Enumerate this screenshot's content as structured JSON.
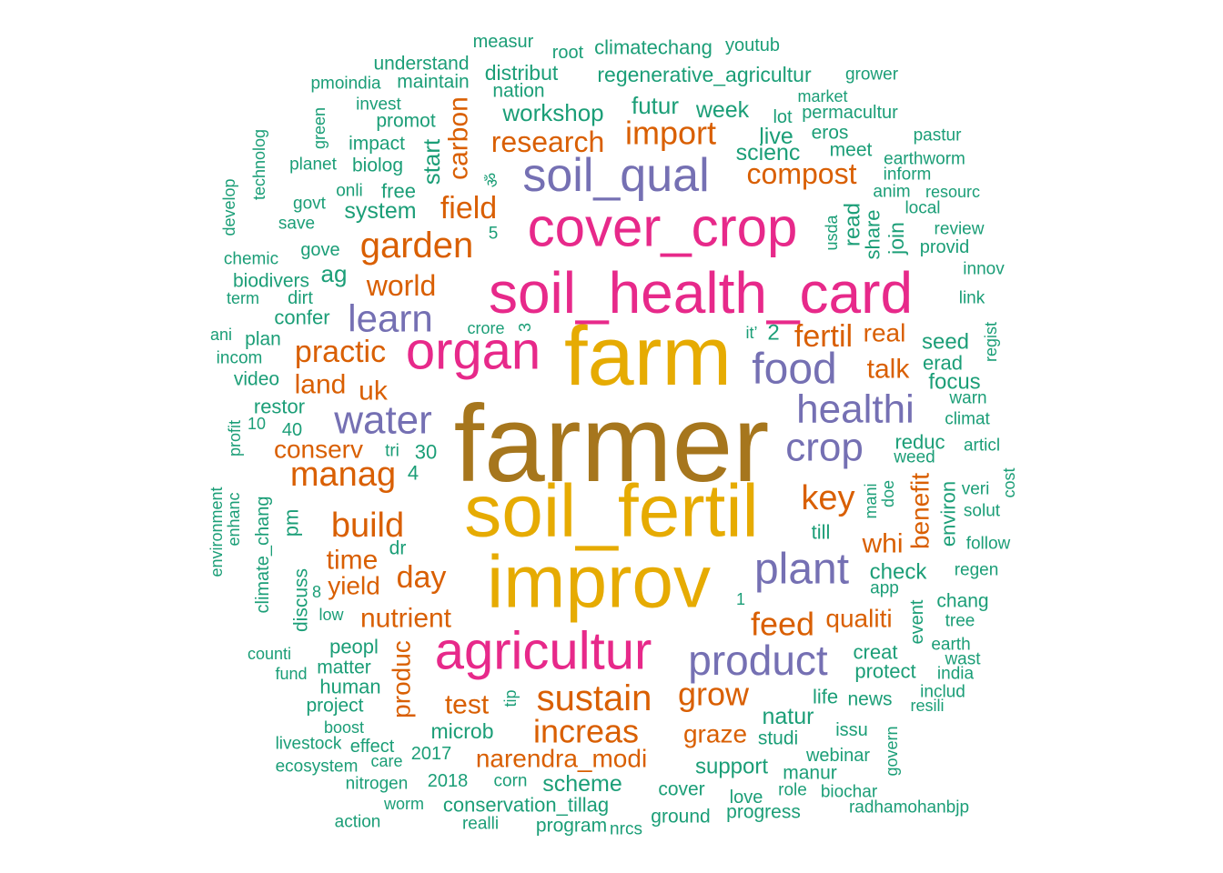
{
  "palette": {
    "top": "#a6761d",
    "high": "#e6ab02",
    "pink": "#e7298a",
    "purple": "#7570b3",
    "orange": "#d95f02",
    "green": "#1b9e77"
  },
  "words": [
    {
      "text": "farmer",
      "color": "#a6761d"
    },
    {
      "text": "farm",
      "color": "#e6ab02"
    },
    {
      "text": "soil_fertil",
      "color": "#e6ab02"
    },
    {
      "text": "improv",
      "color": "#e6ab02"
    },
    {
      "text": "soil_health_card",
      "color": "#e7298a"
    },
    {
      "text": "cover_crop",
      "color": "#e7298a"
    },
    {
      "text": "organ",
      "color": "#e7298a"
    },
    {
      "text": "agricultur",
      "color": "#e7298a"
    },
    {
      "text": "soil_qual",
      "color": "#7570b3"
    },
    {
      "text": "food",
      "color": "#7570b3"
    },
    {
      "text": "healthi",
      "color": "#7570b3"
    },
    {
      "text": "crop",
      "color": "#7570b3"
    },
    {
      "text": "water",
      "color": "#7570b3"
    },
    {
      "text": "learn",
      "color": "#7570b3"
    },
    {
      "text": "plant",
      "color": "#7570b3"
    },
    {
      "text": "product",
      "color": "#7570b3"
    },
    {
      "text": "garden",
      "color": "#d95f02"
    },
    {
      "text": "import",
      "color": "#d95f02"
    },
    {
      "text": "research",
      "color": "#d95f02"
    },
    {
      "text": "compost",
      "color": "#d95f02"
    },
    {
      "text": "field",
      "color": "#d95f02"
    },
    {
      "text": "world",
      "color": "#d95f02"
    },
    {
      "text": "practic",
      "color": "#d95f02"
    },
    {
      "text": "fertil",
      "color": "#d95f02"
    },
    {
      "text": "manag",
      "color": "#d95f02"
    },
    {
      "text": "build",
      "color": "#d95f02"
    },
    {
      "text": "key",
      "color": "#d95f02"
    },
    {
      "text": "sustain",
      "color": "#d95f02"
    },
    {
      "text": "increas",
      "color": "#d95f02"
    },
    {
      "text": "grow",
      "color": "#d95f02"
    },
    {
      "text": "feed",
      "color": "#d95f02"
    },
    {
      "text": "carbon",
      "color": "#d95f02"
    },
    {
      "text": "land",
      "color": "#d95f02"
    },
    {
      "text": "uk",
      "color": "#d95f02"
    },
    {
      "text": "talk",
      "color": "#d95f02"
    },
    {
      "text": "real",
      "color": "#d95f02"
    },
    {
      "text": "conserv",
      "color": "#d95f02"
    },
    {
      "text": "time",
      "color": "#d95f02"
    },
    {
      "text": "day",
      "color": "#d95f02"
    },
    {
      "text": "yield",
      "color": "#d95f02"
    },
    {
      "text": "nutrient",
      "color": "#d95f02"
    },
    {
      "text": "whi",
      "color": "#d95f02"
    },
    {
      "text": "benefit",
      "color": "#d95f02"
    },
    {
      "text": "qualiti",
      "color": "#d95f02"
    },
    {
      "text": "test",
      "color": "#d95f02"
    },
    {
      "text": "produc",
      "color": "#d95f02"
    },
    {
      "text": "graze",
      "color": "#d95f02"
    },
    {
      "text": "narendra_modi",
      "color": "#d95f02"
    },
    {
      "text": "measur",
      "color": "#1b9e77"
    },
    {
      "text": "root",
      "color": "#1b9e77"
    },
    {
      "text": "climatechang",
      "color": "#1b9e77"
    },
    {
      "text": "youtub",
      "color": "#1b9e77"
    },
    {
      "text": "understand",
      "color": "#1b9e77"
    },
    {
      "text": "distribut",
      "color": "#1b9e77"
    },
    {
      "text": "regenerative_agricultur",
      "color": "#1b9e77"
    },
    {
      "text": "grower",
      "color": "#1b9e77"
    },
    {
      "text": "pmoindia",
      "color": "#1b9e77"
    },
    {
      "text": "maintain",
      "color": "#1b9e77"
    },
    {
      "text": "nation",
      "color": "#1b9e77"
    },
    {
      "text": "invest",
      "color": "#1b9e77"
    },
    {
      "text": "futur",
      "color": "#1b9e77"
    },
    {
      "text": "market",
      "color": "#1b9e77"
    },
    {
      "text": "workshop",
      "color": "#1b9e77"
    },
    {
      "text": "week",
      "color": "#1b9e77"
    },
    {
      "text": "lot",
      "color": "#1b9e77"
    },
    {
      "text": "permacultur",
      "color": "#1b9e77"
    },
    {
      "text": "green",
      "color": "#1b9e77"
    },
    {
      "text": "promot",
      "color": "#1b9e77"
    },
    {
      "text": "live",
      "color": "#1b9e77"
    },
    {
      "text": "eros",
      "color": "#1b9e77"
    },
    {
      "text": "pastur",
      "color": "#1b9e77"
    },
    {
      "text": "technolog",
      "color": "#1b9e77"
    },
    {
      "text": "impact",
      "color": "#1b9e77"
    },
    {
      "text": "start",
      "color": "#1b9e77"
    },
    {
      "text": "scienc",
      "color": "#1b9e77"
    },
    {
      "text": "meet",
      "color": "#1b9e77"
    },
    {
      "text": "earthworm",
      "color": "#1b9e77"
    },
    {
      "text": "planet",
      "color": "#1b9e77"
    },
    {
      "text": "biolog",
      "color": "#1b9e77"
    },
    {
      "text": "inform",
      "color": "#1b9e77"
    },
    {
      "text": "develop",
      "color": "#1b9e77"
    },
    {
      "text": "onli",
      "color": "#1b9e77"
    },
    {
      "text": "free",
      "color": "#1b9e77"
    },
    {
      "text": "anim",
      "color": "#1b9e77"
    },
    {
      "text": "resourc",
      "color": "#1b9e77"
    },
    {
      "text": "govt",
      "color": "#1b9e77"
    },
    {
      "text": "system",
      "color": "#1b9e77"
    },
    {
      "text": "read",
      "color": "#1b9e77"
    },
    {
      "text": "usda",
      "color": "#1b9e77"
    },
    {
      "text": "local",
      "color": "#1b9e77"
    },
    {
      "text": "save",
      "color": "#1b9e77"
    },
    {
      "text": "share",
      "color": "#1b9e77"
    },
    {
      "text": "review",
      "color": "#1b9e77"
    },
    {
      "text": "join",
      "color": "#1b9e77"
    },
    {
      "text": "gove",
      "color": "#1b9e77"
    },
    {
      "text": "5",
      "color": "#1b9e77"
    },
    {
      "text": "provid",
      "color": "#1b9e77"
    },
    {
      "text": "chemic",
      "color": "#1b9e77"
    },
    {
      "text": "ag",
      "color": "#1b9e77"
    },
    {
      "text": "innov",
      "color": "#1b9e77"
    },
    {
      "text": "biodivers",
      "color": "#1b9e77"
    },
    {
      "text": "term",
      "color": "#1b9e77"
    },
    {
      "text": "dirt",
      "color": "#1b9e77"
    },
    {
      "text": "link",
      "color": "#1b9e77"
    },
    {
      "text": "confer",
      "color": "#1b9e77"
    },
    {
      "text": "crore",
      "color": "#1b9e77"
    },
    {
      "text": "3",
      "color": "#1b9e77"
    },
    {
      "text": "it’",
      "color": "#1b9e77"
    },
    {
      "text": "2",
      "color": "#1b9e77"
    },
    {
      "text": "ani",
      "color": "#1b9e77"
    },
    {
      "text": "plan",
      "color": "#1b9e77"
    },
    {
      "text": "seed",
      "color": "#1b9e77"
    },
    {
      "text": "regist",
      "color": "#1b9e77"
    },
    {
      "text": "incom",
      "color": "#1b9e77"
    },
    {
      "text": "erad",
      "color": "#1b9e77"
    },
    {
      "text": "video",
      "color": "#1b9e77"
    },
    {
      "text": "focus",
      "color": "#1b9e77"
    },
    {
      "text": "restor",
      "color": "#1b9e77"
    },
    {
      "text": "warn",
      "color": "#1b9e77"
    },
    {
      "text": "10",
      "color": "#1b9e77"
    },
    {
      "text": "40",
      "color": "#1b9e77"
    },
    {
      "text": "climat",
      "color": "#1b9e77"
    },
    {
      "text": "profit",
      "color": "#1b9e77"
    },
    {
      "text": "reduc",
      "color": "#1b9e77"
    },
    {
      "text": "articl",
      "color": "#1b9e77"
    },
    {
      "text": "tri",
      "color": "#1b9e77"
    },
    {
      "text": "30",
      "color": "#1b9e77"
    },
    {
      "text": "weed",
      "color": "#1b9e77"
    },
    {
      "text": "4",
      "color": "#1b9e77"
    },
    {
      "text": "veri",
      "color": "#1b9e77"
    },
    {
      "text": "cost",
      "color": "#1b9e77"
    },
    {
      "text": "environment",
      "color": "#1b9e77"
    },
    {
      "text": "enhanc",
      "color": "#1b9e77"
    },
    {
      "text": "climate_chang",
      "color": "#1b9e77"
    },
    {
      "text": "mani",
      "color": "#1b9e77"
    },
    {
      "text": "doe",
      "color": "#1b9e77"
    },
    {
      "text": "environ",
      "color": "#1b9e77"
    },
    {
      "text": "solut",
      "color": "#1b9e77"
    },
    {
      "text": "pm",
      "color": "#1b9e77"
    },
    {
      "text": "till",
      "color": "#1b9e77"
    },
    {
      "text": "follow",
      "color": "#1b9e77"
    },
    {
      "text": "dr",
      "color": "#1b9e77"
    },
    {
      "text": "discuss",
      "color": "#1b9e77"
    },
    {
      "text": "check",
      "color": "#1b9e77"
    },
    {
      "text": "regen",
      "color": "#1b9e77"
    },
    {
      "text": "app",
      "color": "#1b9e77"
    },
    {
      "text": "8",
      "color": "#1b9e77"
    },
    {
      "text": "1",
      "color": "#1b9e77"
    },
    {
      "text": "chang",
      "color": "#1b9e77"
    },
    {
      "text": "low",
      "color": "#1b9e77"
    },
    {
      "text": "event",
      "color": "#1b9e77"
    },
    {
      "text": "tree",
      "color": "#1b9e77"
    },
    {
      "text": "peopl",
      "color": "#1b9e77"
    },
    {
      "text": "earth",
      "color": "#1b9e77"
    },
    {
      "text": "counti",
      "color": "#1b9e77"
    },
    {
      "text": "creat",
      "color": "#1b9e77"
    },
    {
      "text": "wast",
      "color": "#1b9e77"
    },
    {
      "text": "matter",
      "color": "#1b9e77"
    },
    {
      "text": "fund",
      "color": "#1b9e77"
    },
    {
      "text": "protect",
      "color": "#1b9e77"
    },
    {
      "text": "india",
      "color": "#1b9e77"
    },
    {
      "text": "human",
      "color": "#1b9e77"
    },
    {
      "text": "includ",
      "color": "#1b9e77"
    },
    {
      "text": "tip",
      "color": "#1b9e77"
    },
    {
      "text": "life",
      "color": "#1b9e77"
    },
    {
      "text": "news",
      "color": "#1b9e77"
    },
    {
      "text": "resili",
      "color": "#1b9e77"
    },
    {
      "text": "project",
      "color": "#1b9e77"
    },
    {
      "text": "natur",
      "color": "#1b9e77"
    },
    {
      "text": "boost",
      "color": "#1b9e77"
    },
    {
      "text": "microb",
      "color": "#1b9e77"
    },
    {
      "text": "issu",
      "color": "#1b9e77"
    },
    {
      "text": "govern",
      "color": "#1b9e77"
    },
    {
      "text": "studi",
      "color": "#1b9e77"
    },
    {
      "text": "livestock",
      "color": "#1b9e77"
    },
    {
      "text": "effect",
      "color": "#1b9e77"
    },
    {
      "text": "2017",
      "color": "#1b9e77"
    },
    {
      "text": "webinar",
      "color": "#1b9e77"
    },
    {
      "text": "care",
      "color": "#1b9e77"
    },
    {
      "text": "ecosystem",
      "color": "#1b9e77"
    },
    {
      "text": "support",
      "color": "#1b9e77"
    },
    {
      "text": "manur",
      "color": "#1b9e77"
    },
    {
      "text": "nitrogen",
      "color": "#1b9e77"
    },
    {
      "text": "2018",
      "color": "#1b9e77"
    },
    {
      "text": "corn",
      "color": "#1b9e77"
    },
    {
      "text": "scheme",
      "color": "#1b9e77"
    },
    {
      "text": "cover",
      "color": "#1b9e77"
    },
    {
      "text": "role",
      "color": "#1b9e77"
    },
    {
      "text": "biochar",
      "color": "#1b9e77"
    },
    {
      "text": "worm",
      "color": "#1b9e77"
    },
    {
      "text": "conservation_tillag",
      "color": "#1b9e77"
    },
    {
      "text": "love",
      "color": "#1b9e77"
    },
    {
      "text": "radhamohanbjp",
      "color": "#1b9e77"
    },
    {
      "text": "progress",
      "color": "#1b9e77"
    },
    {
      "text": "ground",
      "color": "#1b9e77"
    },
    {
      "text": "action",
      "color": "#1b9e77"
    },
    {
      "text": "realli",
      "color": "#1b9e77"
    },
    {
      "text": "program",
      "color": "#1b9e77"
    },
    {
      "text": "nrcs",
      "color": "#1b9e77"
    },
    {
      "text": "ॐ",
      "color": "#1b9e77"
    }
  ]
}
